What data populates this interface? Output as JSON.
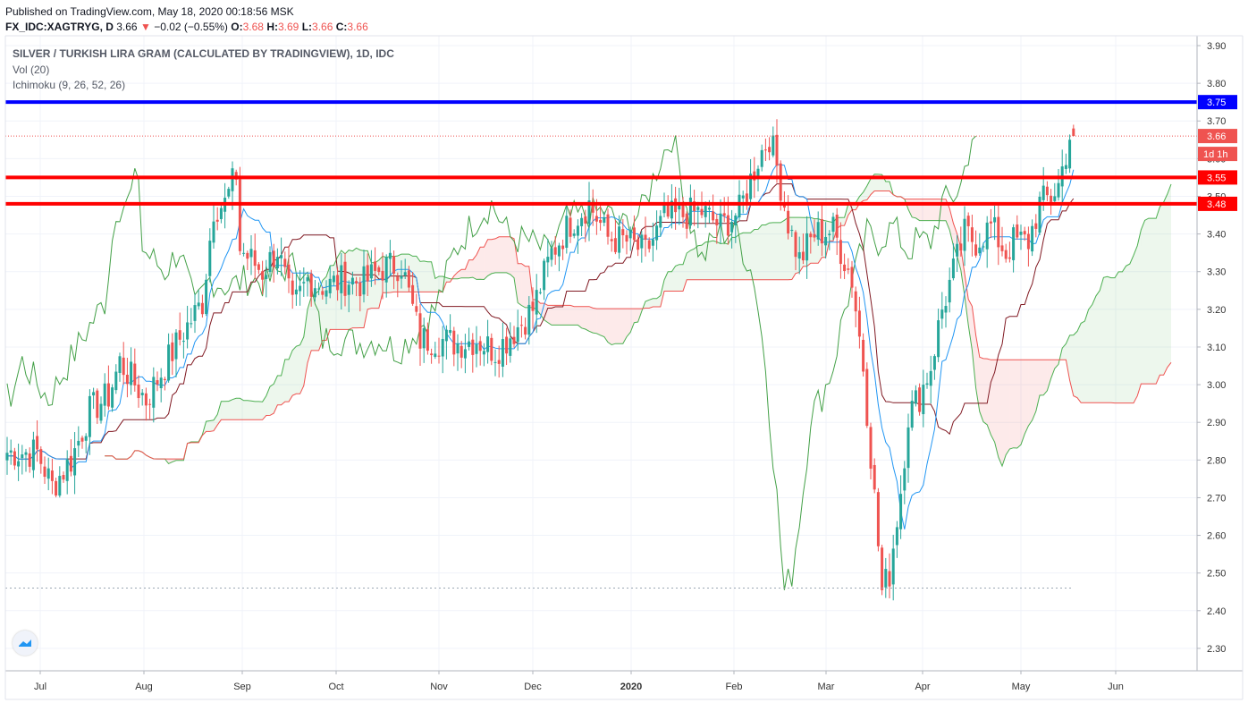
{
  "header": {
    "published": "Published on TradingView.com, May 18, 2020 00:18:56 MSK",
    "symbol": "FX_IDC:XAGTRYG, D",
    "last": "3.66",
    "change": "−0.02 (−0.55%)",
    "o_label": "O:",
    "o": "3.68",
    "h_label": "H:",
    "h": "3.69",
    "l_label": "L:",
    "l": "3.66",
    "c_label": "C:",
    "c": "3.66"
  },
  "legend": {
    "title": "SILVER / TURKISH LIRA GRAM (CALCULATED BY TRADINGVIEW), 1D, IDC",
    "vol": "Vol (20)",
    "ichimoku": "Ichimoku (9, 26, 52, 26)"
  },
  "colors": {
    "up": "#26a69a",
    "down": "#ef5350",
    "support": "#ff0000",
    "resistance": "#0000ff",
    "conversion": "#2196f3",
    "base": "#801922",
    "lagging": "#43a047",
    "span_a": "#4caf50",
    "span_b": "#ef5350",
    "cloud_up": "rgba(76,175,80,0.10)",
    "cloud_down": "rgba(239,83,80,0.12)"
  },
  "chart_data": {
    "type": "candlestick",
    "y_axis": {
      "ticks": [
        3.9,
        3.8,
        3.7,
        3.6,
        3.5,
        3.4,
        3.3,
        3.2,
        3.1,
        3.0,
        2.9,
        2.8,
        2.7,
        2.6,
        2.5,
        2.4,
        2.3
      ],
      "range": [
        2.25,
        3.93
      ]
    },
    "x_axis": {
      "labels": [
        "Jul",
        "Aug",
        "Sep",
        "Oct",
        "Nov",
        "Dec",
        "2020",
        "Feb",
        "Mar",
        "Apr",
        "May",
        "Jun"
      ]
    },
    "horizontal_lines": [
      {
        "value": 3.75,
        "label": "3.75",
        "color": "#0000ff"
      },
      {
        "value": 3.55,
        "label": "3.55",
        "color": "#ff0000"
      },
      {
        "value": 3.48,
        "label": "3.48",
        "color": "#ff0000"
      }
    ],
    "last_price": {
      "value": 3.66,
      "label": "3.66",
      "timer": "1d 1h"
    },
    "candle_anchors": [
      [
        0,
        2.82
      ],
      [
        8,
        2.82
      ],
      [
        12,
        2.73
      ],
      [
        17,
        2.8
      ],
      [
        22,
        2.93
      ],
      [
        27,
        2.97
      ],
      [
        30,
        3.06
      ],
      [
        37,
        2.96
      ],
      [
        42,
        3.05
      ],
      [
        47,
        3.14
      ],
      [
        52,
        3.22
      ],
      [
        55,
        3.47
      ],
      [
        58,
        3.48
      ],
      [
        61,
        3.56
      ],
      [
        62,
        3.36
      ],
      [
        68,
        3.3
      ],
      [
        72,
        3.36
      ],
      [
        76,
        3.2
      ],
      [
        80,
        3.28
      ],
      [
        85,
        3.26
      ],
      [
        90,
        3.28
      ],
      [
        95,
        3.27
      ],
      [
        100,
        3.31
      ],
      [
        105,
        3.32
      ],
      [
        110,
        3.12
      ],
      [
        115,
        3.12
      ],
      [
        120,
        3.11
      ],
      [
        125,
        3.12
      ],
      [
        130,
        3.09
      ],
      [
        133,
        3.12
      ],
      [
        140,
        3.2
      ],
      [
        145,
        3.35
      ],
      [
        150,
        3.43
      ],
      [
        155,
        3.48
      ],
      [
        160,
        3.39
      ],
      [
        165,
        3.38
      ],
      [
        170,
        3.35
      ],
      [
        175,
        3.44
      ],
      [
        180,
        3.45
      ],
      [
        185,
        3.46
      ],
      [
        190,
        3.42
      ],
      [
        195,
        3.46
      ],
      [
        200,
        3.6
      ],
      [
        203,
        3.66
      ],
      [
        205,
        3.58
      ],
      [
        208,
        3.43
      ],
      [
        211,
        3.33
      ],
      [
        215,
        3.4
      ],
      [
        220,
        3.41
      ],
      [
        225,
        3.28
      ],
      [
        228,
        3.05
      ],
      [
        231,
        2.7
      ],
      [
        233,
        2.45
      ],
      [
        235,
        2.5
      ],
      [
        238,
        2.72
      ],
      [
        240,
        2.92
      ],
      [
        243,
        2.97
      ],
      [
        246,
        3.05
      ],
      [
        249,
        3.2
      ],
      [
        252,
        3.3
      ],
      [
        255,
        3.4
      ],
      [
        258,
        3.38
      ],
      [
        262,
        3.42
      ],
      [
        266,
        3.35
      ],
      [
        268,
        3.38
      ],
      [
        272,
        3.38
      ],
      [
        275,
        3.48
      ],
      [
        278,
        3.5
      ],
      [
        280,
        3.53
      ],
      [
        283,
        3.66
      ]
    ],
    "volume": null
  }
}
